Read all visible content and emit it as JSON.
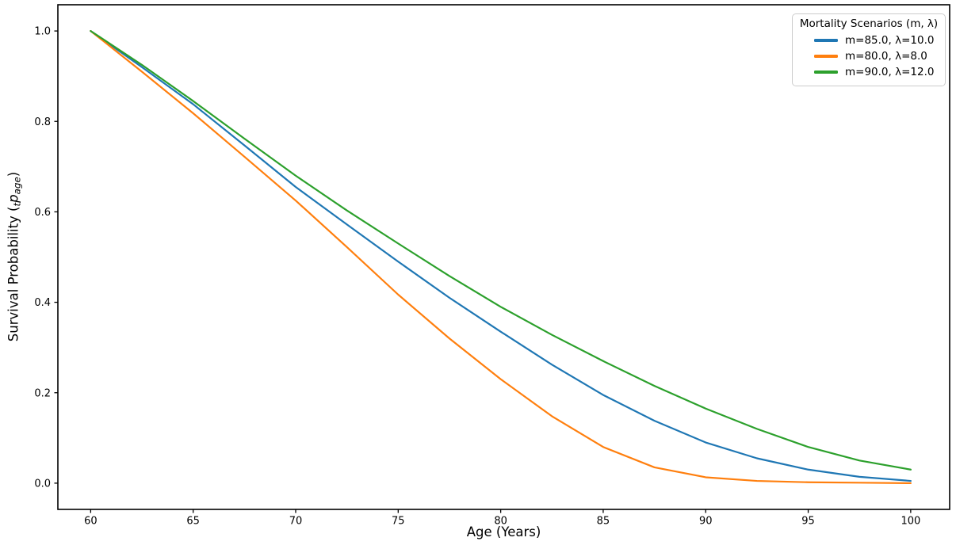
{
  "axes": {
    "xlabel": "Age (Years)",
    "ylabel": {
      "prefix": "Survival Probability (",
      "presub": "t",
      "variable": "p",
      "subscript": "age",
      "suffix": ")"
    }
  },
  "legend": {
    "title": "Mortality Scenarios (m, λ)",
    "entries": [
      {
        "label": "m=85.0, λ=10.0",
        "color": "#1f77b4"
      },
      {
        "label": "m=80.0, λ=8.0",
        "color": "#ff7f0e"
      },
      {
        "label": "m=90.0, λ=12.0",
        "color": "#2ca02c"
      }
    ]
  },
  "chart_data": {
    "type": "line",
    "title": "",
    "xlabel": "Age (Years)",
    "ylabel": "Survival Probability (tp_age)",
    "x": [
      60,
      62.5,
      65,
      67.5,
      70,
      72.5,
      75,
      77.5,
      80,
      82.5,
      85,
      87.5,
      90,
      92.5,
      95,
      97.5,
      100
    ],
    "series": [
      {
        "name": "m=85.0, λ=10.0",
        "color": "#1f77b4",
        "values": [
          1.0,
          0.92,
          0.838,
          0.747,
          0.655,
          0.572,
          0.49,
          0.41,
          0.335,
          0.262,
          0.195,
          0.138,
          0.09,
          0.055,
          0.03,
          0.014,
          0.005
        ]
      },
      {
        "name": "m=80.0, λ=8.0",
        "color": "#ff7f0e",
        "values": [
          1.0,
          0.91,
          0.818,
          0.722,
          0.625,
          0.522,
          0.417,
          0.32,
          0.23,
          0.148,
          0.08,
          0.035,
          0.013,
          0.005,
          0.002,
          0.001,
          0.0
        ]
      },
      {
        "name": "m=90.0, λ=12.0",
        "color": "#2ca02c",
        "values": [
          1.0,
          0.925,
          0.845,
          0.762,
          0.68,
          0.603,
          0.53,
          0.458,
          0.39,
          0.328,
          0.27,
          0.215,
          0.165,
          0.12,
          0.08,
          0.05,
          0.03
        ]
      }
    ],
    "xticks": [
      60,
      65,
      70,
      75,
      80,
      85,
      90,
      95,
      100
    ],
    "yticks": [
      0.0,
      0.2,
      0.4,
      0.6,
      0.8,
      1.0
    ],
    "xlim": [
      58.4,
      101.9
    ],
    "ylim": [
      -0.058,
      1.058
    ],
    "grid": false,
    "legend_position": "upper right",
    "legend_title": "Mortality Scenarios (m, λ)"
  }
}
